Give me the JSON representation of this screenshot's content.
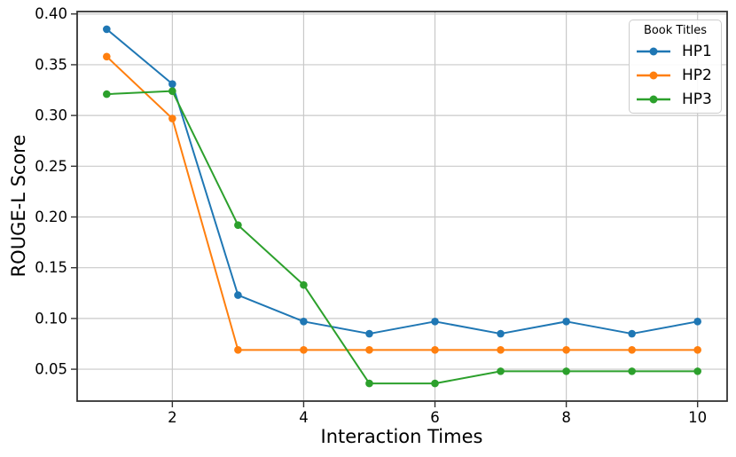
{
  "chart_data": {
    "type": "line",
    "x": [
      1,
      2,
      3,
      4,
      5,
      6,
      7,
      8,
      9,
      10
    ],
    "series": [
      {
        "name": "HP1",
        "color": "#1f77b4",
        "values": [
          0.385,
          0.331,
          0.123,
          0.097,
          0.085,
          0.097,
          0.085,
          0.097,
          0.085,
          0.097
        ]
      },
      {
        "name": "HP2",
        "color": "#ff7f0e",
        "values": [
          0.358,
          0.297,
          0.069,
          0.069,
          0.069,
          0.069,
          0.069,
          0.069,
          0.069,
          0.069
        ]
      },
      {
        "name": "HP3",
        "color": "#2ca02c",
        "values": [
          0.321,
          0.324,
          0.192,
          0.133,
          0.036,
          0.036,
          0.048,
          0.048,
          0.048,
          0.048
        ]
      }
    ],
    "title": "",
    "xlabel": "Interaction Times",
    "ylabel": "ROUGE-L Score",
    "xticks": [
      2,
      4,
      6,
      8,
      10
    ],
    "yticks": [
      0.05,
      0.1,
      0.15,
      0.2,
      0.25,
      0.3,
      0.35,
      0.4
    ],
    "xlim": [
      0.55,
      10.45
    ],
    "ylim": [
      0.0186,
      0.4024
    ],
    "grid": true,
    "marker": "circle",
    "legend": {
      "title": "Book Titles",
      "position": "top-right"
    }
  }
}
